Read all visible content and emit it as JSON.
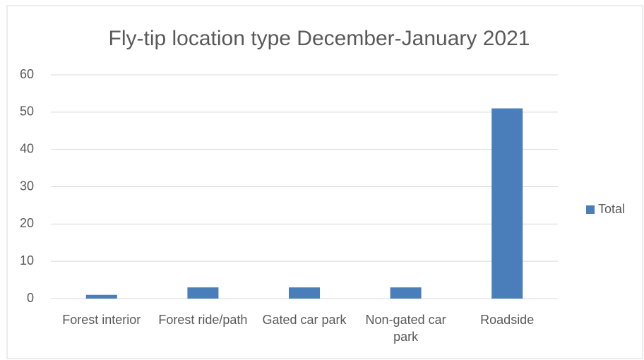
{
  "chart_data": {
    "type": "bar",
    "title": "Fly-tip location type December-January 2021",
    "categories": [
      "Forest interior",
      "Forest ride/path",
      "Gated car park",
      "Non-gated car park",
      "Roadside"
    ],
    "series": [
      {
        "name": "Total",
        "color": "#4a7ebb",
        "values": [
          1,
          3,
          3,
          3,
          51
        ]
      }
    ],
    "ylim": [
      0,
      60
    ],
    "yticks": [
      0,
      10,
      20,
      30,
      40,
      50,
      60
    ],
    "grid": true,
    "legend": "right"
  }
}
